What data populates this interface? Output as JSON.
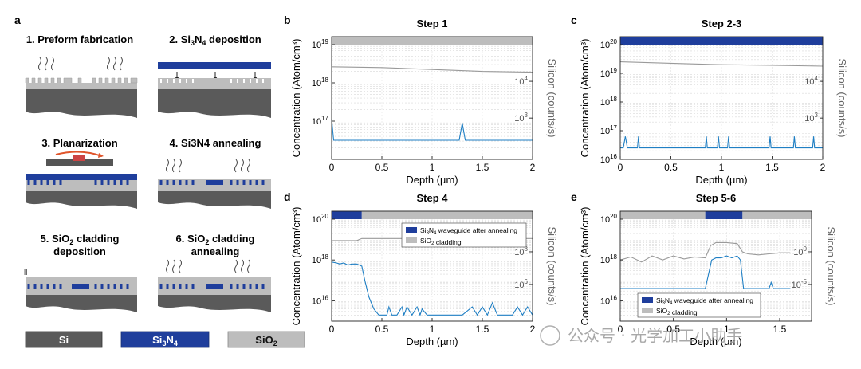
{
  "panel_letters": {
    "a": "a",
    "b": "b",
    "c": "c",
    "d": "d",
    "e": "e"
  },
  "schematic": {
    "steps": [
      {
        "label": "1. Preform fabrication"
      },
      {
        "label_pre": "2. Si",
        "label_sub": "3",
        "label_mid": "N",
        "label_sub2": "4",
        "label_post": " deposition"
      },
      {
        "label": "3. Planarization"
      },
      {
        "label": "4. Si3N4 annealing"
      },
      {
        "line1_pre": "5. SiO",
        "line1_sub": "2",
        "line1_post": " cladding",
        "line2": "deposition"
      },
      {
        "line1_pre": "6. SiO",
        "line1_sub": "2",
        "line1_post": " cladding",
        "line2": "annealing"
      }
    ],
    "legend": {
      "si": "Si",
      "sin_pre": "Si",
      "sin_sub": "3",
      "sin_mid": "N",
      "sin_sub2": "4",
      "sio_pre": "SiO",
      "sio_sub": "2"
    }
  },
  "colors": {
    "blue": "#1f3e9c",
    "sio2": "#bdbdbd",
    "si": "#5a5a5a",
    "line": "#1f7fc4",
    "gray": "#9a9a9a"
  },
  "chart_data": [
    {
      "id": "b",
      "type": "line",
      "title": "Step 1",
      "xlabel": "Depth",
      "xunit": "(µm)",
      "ylabel": "Concentration (Atom/cm³)",
      "ylabel2": "Silicon (counts/s)",
      "xlim": [
        0,
        2
      ],
      "ylim_exp": [
        16,
        19
      ],
      "x_ticks": [
        "0",
        "0.5",
        "1",
        "1.5",
        "2"
      ],
      "y_ticks": [
        {
          "base": "10",
          "exp": "19"
        },
        {
          "base": "10",
          "exp": "18"
        },
        {
          "base": "10",
          "exp": "17"
        }
      ],
      "y2_ticks": [
        {
          "base": "10",
          "exp": "4"
        },
        {
          "base": "10",
          "exp": "3"
        }
      ],
      "top_bar": [
        {
          "from": 0,
          "to": 2,
          "material": "SiO2"
        }
      ],
      "series": [
        {
          "name": "N",
          "color": "#1f7fc4",
          "x": [
            0,
            0.02,
            0.04,
            1.27,
            1.3,
            1.33,
            2
          ],
          "logy": [
            17.05,
            16.5,
            16.5,
            16.5,
            16.95,
            16.5,
            16.5
          ]
        },
        {
          "name": "Silicon",
          "color": "#9a9a9a",
          "x": [
            0,
            0.5,
            1.0,
            1.5,
            2
          ],
          "logy": [
            18.42,
            18.4,
            18.35,
            18.3,
            18.28
          ]
        }
      ]
    },
    {
      "id": "c",
      "type": "line",
      "title": "Step 2-3",
      "xlabel": "Depth",
      "xunit": "(µm)",
      "ylabel": "Concentration (Atom/cm³)",
      "ylabel2": "Silicon (counts/s)",
      "xlim": [
        0,
        2
      ],
      "ylim_exp": [
        16,
        20
      ],
      "x_ticks": [
        "0",
        "0.5",
        "1",
        "1.5",
        "2"
      ],
      "y_ticks": [
        {
          "base": "10",
          "exp": "20"
        },
        {
          "base": "10",
          "exp": "19"
        },
        {
          "base": "10",
          "exp": "18"
        },
        {
          "base": "10",
          "exp": "17"
        },
        {
          "base": "10",
          "exp": "16"
        }
      ],
      "y2_ticks": [
        {
          "base": "10",
          "exp": "4"
        },
        {
          "base": "10",
          "exp": "3"
        }
      ],
      "top_bar": [
        {
          "from": 0,
          "to": 2,
          "material": "Si3N4"
        }
      ],
      "series": [
        {
          "name": "N",
          "color": "#1f7fc4",
          "x": [
            0,
            0.03,
            0.05,
            0.07,
            0.17,
            0.18,
            0.19,
            0.84,
            0.85,
            0.86,
            0.96,
            0.97,
            0.98,
            1.06,
            1.07,
            1.08,
            1.47,
            1.48,
            1.49,
            1.71,
            1.72,
            1.73,
            1.9,
            1.91,
            1.92,
            2
          ],
          "logy": [
            16.4,
            16.4,
            16.8,
            16.4,
            16.4,
            16.8,
            16.4,
            16.4,
            16.8,
            16.4,
            16.4,
            16.8,
            16.4,
            16.4,
            16.8,
            16.4,
            16.4,
            16.8,
            16.4,
            16.4,
            16.8,
            16.4,
            16.4,
            16.8,
            16.4,
            16.4
          ]
        },
        {
          "name": "Silicon",
          "color": "#9a9a9a",
          "x": [
            0,
            0.5,
            1.0,
            1.5,
            2
          ],
          "logy": [
            19.4,
            19.35,
            19.3,
            19.28,
            19.25
          ]
        }
      ]
    },
    {
      "id": "d",
      "type": "line",
      "title": "Step 4",
      "xlabel": "Depth",
      "xunit": "(µm)",
      "ylabel": "Concentration (Atom/cm³)",
      "ylabel2": "Silicon (counts/s)",
      "xlim": [
        0,
        2
      ],
      "ylim_exp": [
        15,
        20
      ],
      "x_ticks": [
        "0",
        "0.5",
        "1",
        "1.5",
        "2"
      ],
      "y_ticks": [
        {
          "base": "10",
          "exp": "20"
        },
        {
          "base": "10",
          "exp": "18"
        },
        {
          "base": "10",
          "exp": "16"
        }
      ],
      "y2_ticks": [
        {
          "base": "10",
          "exp": "8"
        },
        {
          "base": "10",
          "exp": "6"
        }
      ],
      "top_bar": [
        {
          "from": 0,
          "to": 0.3,
          "material": "Si3N4"
        },
        {
          "from": 0.3,
          "to": 2,
          "material": "SiO2"
        }
      ],
      "legend": [
        {
          "pre": "Si",
          "sub": "3",
          "mid": "N",
          "sub2": "4",
          "post": " waveguide after annealing",
          "color": "#1f3e9c"
        },
        {
          "pre": "SiO",
          "sub": "2",
          "mid": "",
          "sub2": "",
          "post": " cladding",
          "color": "#bdbdbd"
        }
      ],
      "series": [
        {
          "name": "N",
          "color": "#1f7fc4",
          "x": [
            0,
            0.05,
            0.08,
            0.12,
            0.16,
            0.2,
            0.25,
            0.3,
            0.33,
            0.37,
            0.42,
            0.47,
            0.5,
            0.55,
            0.57,
            0.6,
            0.65,
            0.7,
            0.72,
            0.75,
            0.8,
            0.85,
            0.88,
            0.9,
            0.95,
            1.0,
            1.05,
            1.1,
            1.15,
            1.2,
            1.3,
            1.4,
            1.45,
            1.5,
            1.55,
            1.6,
            1.65,
            1.7,
            1.8,
            1.85,
            1.9,
            1.95,
            2
          ],
          "logy": [
            17.9,
            17.85,
            17.8,
            17.85,
            17.75,
            17.8,
            17.8,
            17.7,
            17.0,
            16.2,
            15.6,
            15.3,
            15.3,
            15.3,
            15.7,
            15.3,
            15.3,
            15.7,
            15.3,
            15.7,
            15.3,
            15.7,
            15.3,
            15.6,
            15.3,
            15.3,
            15.3,
            15.3,
            15.3,
            15.3,
            15.3,
            15.7,
            15.3,
            15.7,
            15.3,
            15.9,
            15.3,
            15.3,
            15.3,
            15.7,
            15.3,
            15.7,
            15.3
          ]
        },
        {
          "name": "Silicon",
          "color": "#9a9a9a",
          "x": [
            0,
            0.25,
            0.3,
            0.5,
            1.0,
            1.5,
            2
          ],
          "logy": [
            18.95,
            18.95,
            19.05,
            19.05,
            19.05,
            19.05,
            19.05
          ]
        }
      ]
    },
    {
      "id": "e",
      "type": "line",
      "title": "Step 5-6",
      "xlabel": "Depth",
      "xunit": "(µm)",
      "ylabel": "Concentration (Atom/cm³)",
      "ylabel2": "Silicon (counts/s)",
      "xlim": [
        0,
        1.8
      ],
      "ylim_exp": [
        15,
        20
      ],
      "x_ticks": [
        "0",
        "0.5",
        "1",
        "1.5"
      ],
      "y_ticks": [
        {
          "base": "10",
          "exp": "20"
        },
        {
          "base": "10",
          "exp": "18"
        },
        {
          "base": "10",
          "exp": "16"
        }
      ],
      "y2_ticks": [
        {
          "base": "10",
          "exp": "0"
        },
        {
          "base": "10",
          "exp": "-5"
        }
      ],
      "top_bar": [
        {
          "from": 0,
          "to": 0.8,
          "material": "SiO2"
        },
        {
          "from": 0.8,
          "to": 1.15,
          "material": "Si3N4"
        },
        {
          "from": 1.15,
          "to": 1.8,
          "material": "SiO2"
        }
      ],
      "legend": [
        {
          "pre": "Si",
          "sub": "3",
          "mid": "N",
          "sub2": "4",
          "post": " waveguide after annealing",
          "color": "#1f3e9c"
        },
        {
          "pre": "SiO",
          "sub": "2",
          "mid": "",
          "sub2": "",
          "post": " cladding",
          "color": "#bdbdbd"
        }
      ],
      "series": [
        {
          "name": "N",
          "color": "#1f7fc4",
          "x": [
            0,
            0.4,
            0.8,
            0.83,
            0.86,
            0.9,
            0.95,
            1.0,
            1.05,
            1.1,
            1.13,
            1.16,
            1.2,
            1.4,
            1.42,
            1.44,
            1.6
          ],
          "logy": [
            16.6,
            16.6,
            16.6,
            17.3,
            18.0,
            18.1,
            18.1,
            18.2,
            18.1,
            18.2,
            18.0,
            16.6,
            16.6,
            16.6,
            16.9,
            16.6,
            16.6
          ]
        },
        {
          "name": "Silicon",
          "color": "#9a9a9a",
          "x": [
            0,
            0.1,
            0.2,
            0.3,
            0.4,
            0.5,
            0.6,
            0.7,
            0.8,
            0.85,
            0.9,
            1.0,
            1.1,
            1.15,
            1.2,
            1.3,
            1.4,
            1.5,
            1.6
          ],
          "logy": [
            18.0,
            18.15,
            17.9,
            18.2,
            18.0,
            18.2,
            18.05,
            18.15,
            18.1,
            18.7,
            18.85,
            18.85,
            18.8,
            18.4,
            18.3,
            18.25,
            18.3,
            18.35,
            18.35
          ]
        }
      ]
    }
  ],
  "watermark": "公众号 · 光学加工小助手"
}
